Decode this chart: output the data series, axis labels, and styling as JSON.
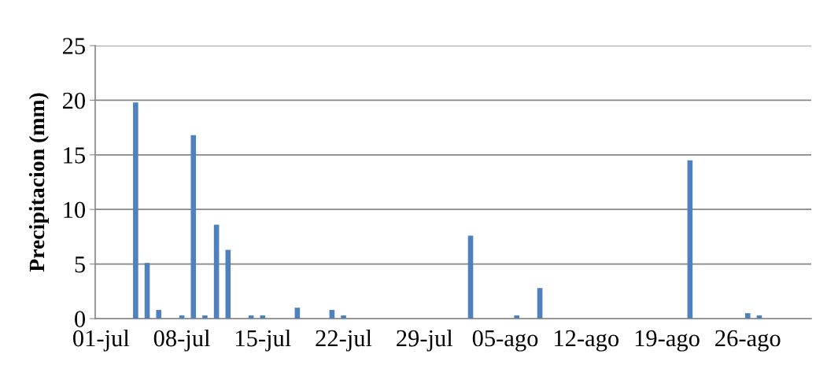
{
  "chart_data": {
    "type": "bar",
    "ylabel": "Precipitacion (mm)",
    "categories": [
      "01-jul",
      null,
      null,
      null,
      null,
      null,
      null,
      "08-jul",
      null,
      null,
      null,
      null,
      null,
      null,
      "15-jul",
      null,
      null,
      null,
      null,
      null,
      null,
      "22-jul",
      null,
      null,
      null,
      null,
      null,
      null,
      "29-jul",
      null,
      null,
      null,
      null,
      null,
      null,
      "05-ago",
      null,
      null,
      null,
      null,
      null,
      null,
      "12-ago",
      null,
      null,
      null,
      null,
      null,
      null,
      "19-ago",
      null,
      null,
      null,
      null,
      null,
      null,
      "26-ago",
      null,
      null,
      null,
      null,
      null
    ],
    "values": [
      0,
      0,
      0,
      19.8,
      5.1,
      0.8,
      0,
      0.3,
      16.8,
      0.3,
      8.6,
      6.3,
      0,
      0.3,
      0.3,
      0,
      0,
      1.0,
      0,
      0,
      0.8,
      0.3,
      0,
      0,
      0,
      0,
      0,
      0,
      0,
      0,
      0,
      0,
      7.6,
      0,
      0,
      0,
      0.3,
      0,
      2.8,
      0,
      0,
      0,
      0,
      0,
      0,
      0,
      0,
      0,
      0,
      0,
      0,
      14.5,
      0,
      0,
      0,
      0,
      0.5,
      0.3,
      0,
      0,
      0,
      0
    ],
    "color": "#4f81bd",
    "ylim": [
      0,
      25
    ],
    "yticks": [
      0,
      5,
      10,
      15,
      20,
      25
    ],
    "grid": "y"
  }
}
